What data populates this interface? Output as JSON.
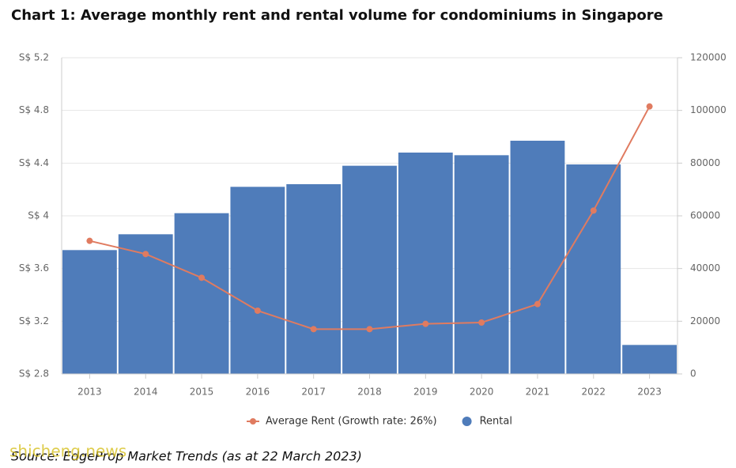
{
  "chart_data": {
    "type": "bar_line",
    "title": "Chart 1: Average monthly rent and rental volume for condominiums in Singapore",
    "categories": [
      "2013",
      "2014",
      "2015",
      "2016",
      "2017",
      "2018",
      "2019",
      "2020",
      "2021",
      "2022",
      "2023"
    ],
    "series": [
      {
        "name": "Average Rent (Growth rate: 26%)",
        "type": "line",
        "color": "#e07b60",
        "axis": "y",
        "values": [
          3.81,
          3.71,
          3.53,
          3.28,
          3.14,
          3.14,
          3.18,
          3.19,
          3.33,
          4.04,
          4.83
        ]
      },
      {
        "name": "Rental",
        "type": "bar",
        "color": "#4f7cba",
        "axis": "y2",
        "values": [
          47000,
          53000,
          61000,
          71000,
          72000,
          79000,
          84000,
          83000,
          88500,
          79500,
          11000
        ]
      }
    ],
    "ylim": [
      2.8,
      5.2
    ],
    "yticks": [
      {
        "value": 2.8,
        "label": "S$ 2.8"
      },
      {
        "value": 3.2,
        "label": "S$ 3.2"
      },
      {
        "value": 3.6,
        "label": "S$ 3.6"
      },
      {
        "value": 4,
        "label": "S$ 4"
      },
      {
        "value": 4.4,
        "label": "S$ 4.4"
      },
      {
        "value": 4.8,
        "label": "S$ 4.8"
      },
      {
        "value": 5.2,
        "label": "S$ 5.2"
      }
    ],
    "y2lim": [
      0,
      120000
    ],
    "y2ticks": [
      0,
      20000,
      40000,
      60000,
      80000,
      100000,
      120000
    ],
    "grid": true,
    "source": "Source: EdgeProp Market Trends (as at 22 March 2023)",
    "watermark": "shicheng.news"
  }
}
